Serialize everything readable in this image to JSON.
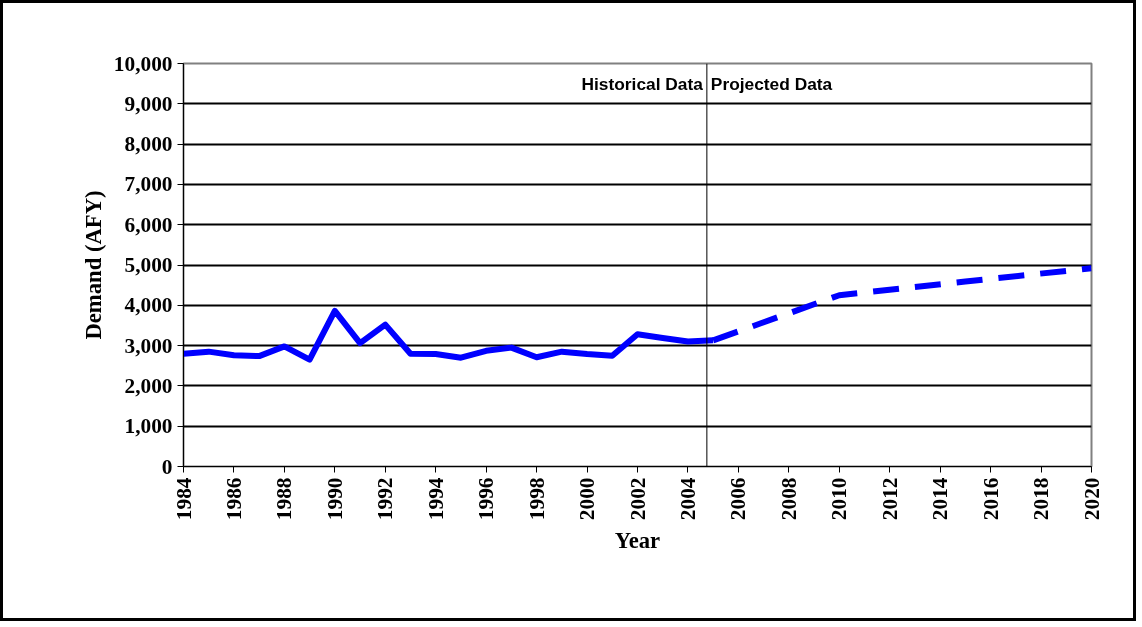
{
  "chart_data": {
    "type": "line",
    "xlabel": "Year",
    "ylabel": "Demand (AFY)",
    "series": [
      {
        "color": "#0000ff",
        "line_style": "solid",
        "x": [
          1984,
          1985,
          1986,
          1987,
          1988,
          1989,
          1990,
          1991,
          1992,
          1993,
          1994,
          1995,
          1996,
          1997,
          1998,
          1999,
          2000,
          2001,
          2002,
          2003,
          2004,
          2005
        ],
        "values": [
          2800,
          2850,
          2760,
          2740,
          2980,
          2650,
          3860,
          3060,
          3520,
          2800,
          2790,
          2700,
          2870,
          2950,
          2710,
          2850,
          2790,
          2750,
          3280,
          3190,
          3100,
          3130
        ]
      },
      {
        "color": "#0000ff",
        "line_style": "dashed",
        "x": [
          2005,
          2010,
          2015,
          2020
        ],
        "values": [
          3130,
          4250,
          4590,
          4920
        ]
      }
    ],
    "xlim": [
      1984,
      2020
    ],
    "xticks": [
      1984,
      1986,
      1988,
      1990,
      1992,
      1994,
      1996,
      1998,
      2000,
      2002,
      2004,
      2006,
      2008,
      2010,
      2012,
      2014,
      2016,
      2018,
      2020
    ],
    "ylim": [
      0,
      10000
    ],
    "yticks": [
      {
        "value": 0,
        "label": "0"
      },
      {
        "value": 1000,
        "label": "1,000"
      },
      {
        "value": 2000,
        "label": "2,000"
      },
      {
        "value": 3000,
        "label": "3,000"
      },
      {
        "value": 4000,
        "label": "4,000"
      },
      {
        "value": 5000,
        "label": "5,000"
      },
      {
        "value": 6000,
        "label": "6,000"
      },
      {
        "value": 7000,
        "label": "7,000"
      },
      {
        "value": 8000,
        "label": "8,000"
      },
      {
        "value": 9000,
        "label": "9,000"
      },
      {
        "value": 10000,
        "label": "10,000"
      }
    ],
    "grid": "y",
    "marker": "none",
    "ref_lines": [
      {
        "axis": "x",
        "value": 2004.75,
        "color": "#000000"
      }
    ],
    "annotations": [
      {
        "text": "Historical Data",
        "x": 2004.75,
        "y": 9500
      },
      {
        "text": "Projected Data",
        "x": 2004.75,
        "y": 9500
      }
    ]
  }
}
